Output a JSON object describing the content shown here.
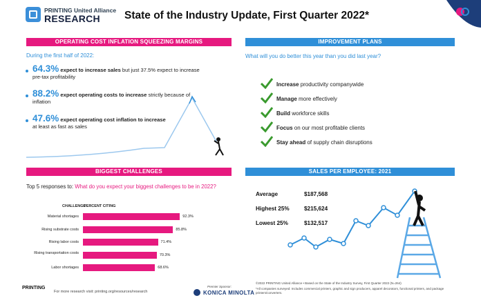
{
  "header": {
    "logo_line1": "PRINTING United Alliance",
    "logo_line2": "RESEARCH",
    "title": "State of the Industry Update, First Quarter 2022*"
  },
  "inflation": {
    "heading": "OPERATING COST INFLATION SQUEEZING MARGINS",
    "intro": "During the first half of 2022:",
    "stats": [
      {
        "num": "64.3%",
        "bold": "expect to increase sales",
        "rest": " but just 37.5% expect to increase pre-tax profitability"
      },
      {
        "num": "88.2%",
        "bold": "expect operating costs to increase",
        "rest": " strictly because of inflation"
      },
      {
        "num": "47.6%",
        "bold": "expect operating cost inflation to increase",
        "rest": " at least as fast as sales"
      }
    ]
  },
  "improvement": {
    "heading": "IMPROVEMENT PLANS",
    "question": "What will you do better this year than you did last year?",
    "items": [
      {
        "bold": "Increase",
        "rest": " productivity companywide"
      },
      {
        "bold": "Manage",
        "rest": " more effectively"
      },
      {
        "bold": "Build",
        "rest": " workforce skills"
      },
      {
        "bold": "Focus",
        "rest": " on our most profitable clients"
      },
      {
        "bold": "Stay ahead",
        "rest": " of supply chain disruptions"
      }
    ],
    "check_color": "#3a9a2e"
  },
  "challenges": {
    "heading": "BIGGEST CHALLENGES",
    "question_prefix": "Top 5 responses to: ",
    "question": "What do you expect your biggest challenges to be in 2022?",
    "col_challenge": "CHALLENGE",
    "col_percent": "PERCENT CITING"
  },
  "chart_data": {
    "type": "bar",
    "orientation": "horizontal",
    "categories": [
      "Material shortages",
      "Rising substrate costs",
      "Rising labor costs",
      "Rising transportation costs",
      "Labor shortages"
    ],
    "values": [
      92.3,
      85.8,
      71.4,
      70.3,
      68.6
    ],
    "value_labels": [
      "92.3%",
      "85.8%",
      "71.4%",
      "70.3%",
      "68.6%"
    ],
    "color": "#e6197f"
  },
  "sales": {
    "heading": "SALES PER EMPLOYEE: 2021",
    "rows": [
      {
        "label": "Average",
        "value": "$187,568"
      },
      {
        "label": "Highest 25%",
        "value": "$215,624"
      },
      {
        "label": "Lowest 25%",
        "value": "$132,517"
      }
    ]
  },
  "footer": {
    "more": "For more research visit: printing.org/resources/research",
    "sponsor_label": "Premier Sponsor:",
    "sponsor": "KONICA MINOLTA",
    "logo_text": "PRINTING",
    "copyright": "©2022 PRINTING United Alliance • Based on the State of the Industry Survey, First Quarter 2022 (N=264)",
    "note": "*All companies surveyed: Includes commercial printers, graphic and sign producers, apparel decorators, functional printers, and package printers/converters."
  }
}
